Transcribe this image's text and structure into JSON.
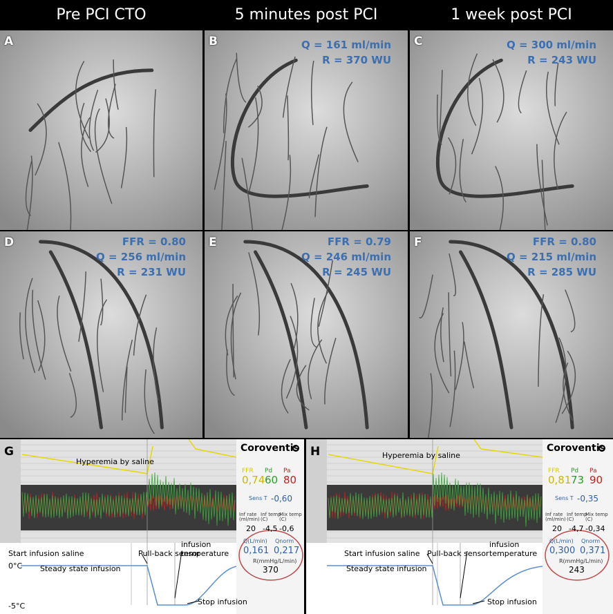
{
  "columns": [
    "Pre PCI CTO",
    "5 minutes post PCI",
    "1 week post PCI"
  ],
  "panels": [
    {
      "label": "A",
      "lines": []
    },
    {
      "label": "B",
      "lines": [
        "Q = 161 ml/min",
        "R = 370 WU"
      ]
    },
    {
      "label": "C",
      "lines": [
        "Q = 300 ml/min",
        "R = 243 WU"
      ]
    },
    {
      "label": "D",
      "lines": [
        "FFR = 0.80",
        "Q = 256 ml/min",
        "R = 231 WU"
      ]
    },
    {
      "label": "E",
      "lines": [
        "FFR = 0.79",
        "Q = 246 ml/min",
        "R = 245 WU"
      ]
    },
    {
      "label": "F",
      "lines": [
        "FFR = 0.80",
        "Q = 215 ml/min",
        "R = 285 WU"
      ]
    }
  ],
  "monitors": [
    {
      "label": "G",
      "brand": "Coroventis",
      "fields": {
        "ffr_label": "FFR",
        "pd_label": "Pd",
        "pa_label": "Pa",
        "ffr": "0,74",
        "pd": "60",
        "pa": "80",
        "sens_label": "Sens T",
        "sens": "-0,60",
        "inf_rate_label": "Inf rate (ml/min)",
        "inf_temp_label": "Inf temp (C)",
        "mix_temp_label": "Mix temp (C)",
        "inf_rate": "20",
        "inf_temp": "-4,5",
        "mix_temp": "-0,6",
        "q_label": "Q(L/min)",
        "qnorm_label": "Qnorm",
        "q": "0,161",
        "qnorm": "0,217",
        "r_label": "R(mmHg/L/min)",
        "r": "370"
      },
      "annotations": [
        "Hyperemia by saline",
        "Start infusion saline",
        "Pull-back sensor",
        "infusion temperature",
        "Steady state infusion",
        "Stop infusion",
        "0°C",
        "-5°C"
      ]
    },
    {
      "label": "H",
      "brand": "Coroventis",
      "fields": {
        "ffr_label": "FFR",
        "pd_label": "Pd",
        "pa_label": "Pa",
        "ffr": "0,81",
        "pd": "73",
        "pa": "90",
        "sens_label": "Sens T",
        "sens": "-0,35",
        "inf_rate_label": "Inf rate (ml/min)",
        "inf_temp_label": "Inf temp (C)",
        "mix_temp_label": "Mix temp (C)",
        "inf_rate": "20",
        "inf_temp": "-4,7",
        "mix_temp": "-0,34",
        "q_label": "Q(L/min)",
        "qnorm_label": "Qnorm",
        "q": "0,300",
        "qnorm": "0,371",
        "r_label": "R(mmHg/L/min)",
        "r": "243"
      },
      "annotations": [
        "Hyperemia by saline",
        "Start infusion saline",
        "Pull-back sensor",
        "infusion temperature",
        "Steady state infusion",
        "Stop infusion"
      ]
    }
  ]
}
